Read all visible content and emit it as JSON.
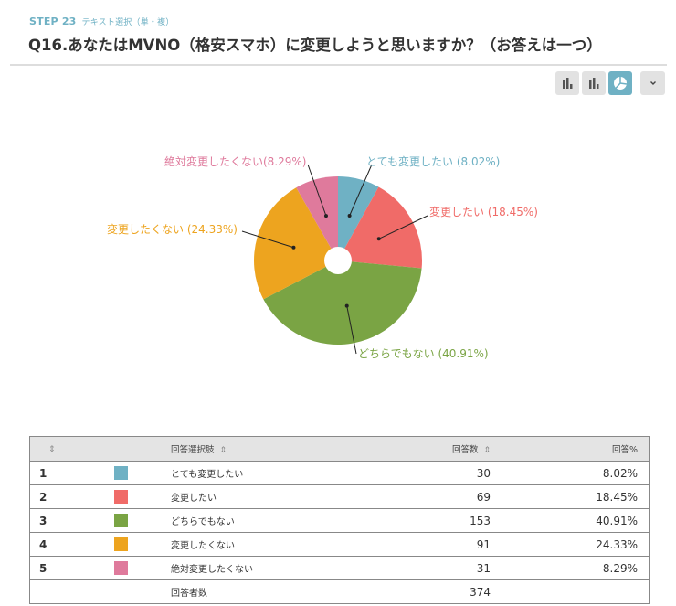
{
  "header": {
    "step": "STEP 23",
    "step_type": "テキスト選択（単・複）",
    "question": "Q16.あなたはMVNO（格安スマホ）に変更しようと思いますか？（お答えは一つ）"
  },
  "toolbar": {
    "buttons": [
      {
        "name": "bar-chart-icon",
        "active": false
      },
      {
        "name": "bar-chart-alt-icon",
        "active": false
      },
      {
        "name": "pie-chart-icon",
        "active": true
      }
    ],
    "dropdown": "chevron-down-icon"
  },
  "chart_data": {
    "type": "pie",
    "title": "Q16.あなたはMVNO（格安スマホ）に変更しようと思いますか？（お答えは一つ）",
    "categories": [
      "とても変更したい",
      "変更したい",
      "どちらでもない",
      "変更したくない",
      "絶対変更したくない"
    ],
    "values": [
      30,
      69,
      153,
      91,
      31
    ],
    "percent": [
      8.02,
      18.45,
      40.91,
      24.33,
      8.29
    ],
    "colors": [
      "#6fb1c4",
      "#f06b68",
      "#7aa444",
      "#eda41f",
      "#df7a9c"
    ],
    "labels": [
      "とても変更したい (8.02%)",
      "変更したい (18.45%)",
      "どちらでもない (40.91%)",
      "変更したくない (24.33%)",
      "絶対変更したくない(8.29%)"
    ],
    "legend": "none",
    "inner_radius_ratio": 0.16
  },
  "table": {
    "headers": [
      "",
      "",
      "回答選択肢",
      "回答数",
      "回答%"
    ],
    "rows": [
      {
        "idx": "1",
        "color": "#6fb1c4",
        "label": "とても変更したい",
        "count": "30",
        "pct": "8.02%"
      },
      {
        "idx": "2",
        "color": "#f06b68",
        "label": "変更したい",
        "count": "69",
        "pct": "18.45%"
      },
      {
        "idx": "3",
        "color": "#7aa444",
        "label": "どちらでもない",
        "count": "153",
        "pct": "40.91%"
      },
      {
        "idx": "4",
        "color": "#eda41f",
        "label": "変更したくない",
        "count": "91",
        "pct": "24.33%"
      },
      {
        "idx": "5",
        "color": "#df7a9c",
        "label": "絶対変更したくない",
        "count": "31",
        "pct": "8.29%"
      }
    ],
    "total_label": "回答者数",
    "total_count": "374"
  }
}
